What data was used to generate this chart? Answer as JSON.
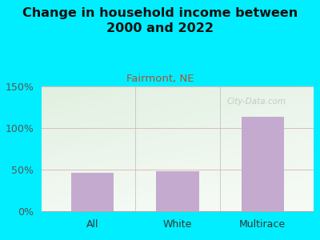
{
  "title": "Change in household income between\n2000 and 2022",
  "subtitle": "Fairmont, NE",
  "categories": [
    "All",
    "White",
    "Multirace"
  ],
  "values": [
    46,
    48,
    113
  ],
  "bar_color": "#c5aad0",
  "title_fontsize": 11.5,
  "subtitle_fontsize": 9.5,
  "subtitle_color": "#b05030",
  "tick_label_fontsize": 9,
  "ylim": [
    0,
    150
  ],
  "yticks": [
    0,
    50,
    100,
    150
  ],
  "ytick_labels": [
    "0%",
    "50%",
    "100%",
    "150%"
  ],
  "bg_outer": "#00eeff",
  "bg_plot_color1": "#d8efd0",
  "bg_plot_color2": "#f0f8ee",
  "bg_plot_color3": "#fafaf8",
  "grid_color": "#ddbbbb",
  "watermark": "City-Data.com"
}
